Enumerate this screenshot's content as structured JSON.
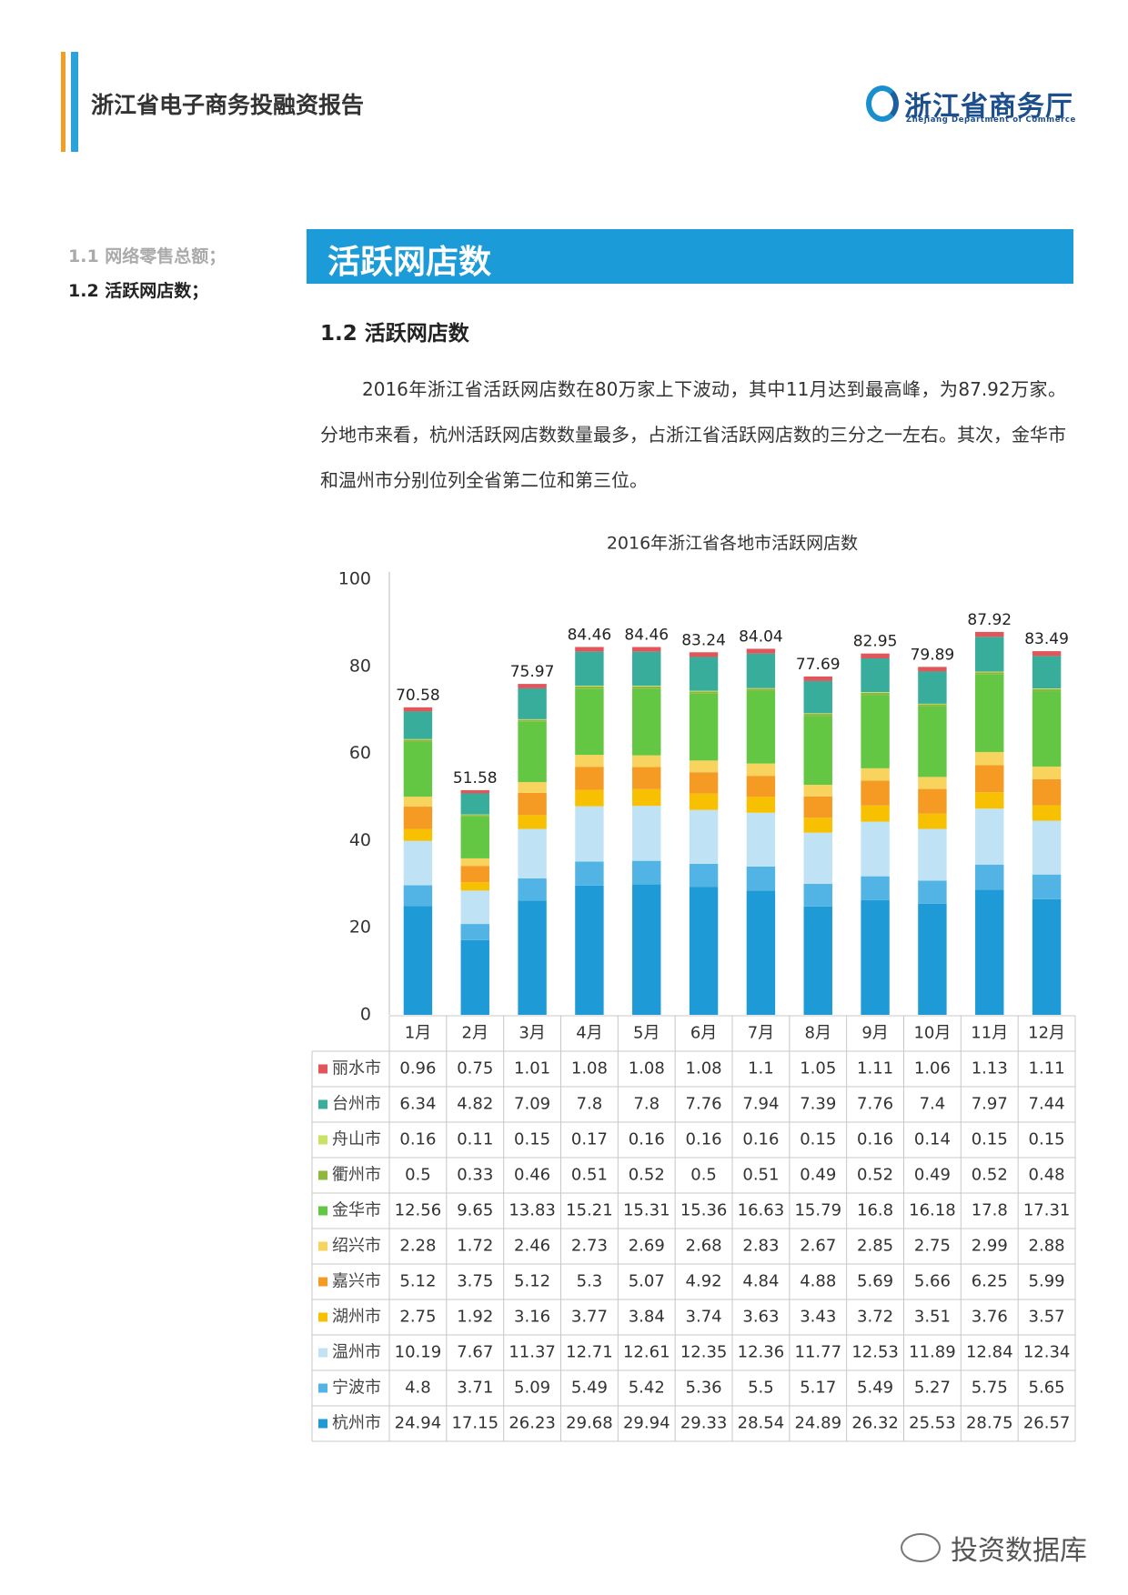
{
  "header": {
    "title": "浙江省电子商务投融资报告",
    "logo_name": "浙江省商务厅",
    "logo_subtitle": "Zhejiang Department of Commerce"
  },
  "sidebar": {
    "items": [
      "1.1 网络零售总额；",
      "1.2 活跃网店数；"
    ]
  },
  "banner": {
    "title": "活跃网店数"
  },
  "section": {
    "heading": "1.2 活跃网店数",
    "paragraph": "2016年浙江省活跃网店数在80万家上下波动，其中11月达到最高峰，为87.92万家。分地市来看，杭州活跃网店数数量最多，占浙江省活跃网店数的三分之一左右。其次，金华市和温州市分别位列全省第二位和第三位。"
  },
  "watermark": "投资数据库",
  "chart_data": {
    "type": "stacked_bar",
    "title": "2016年浙江省各地市活跃网店数",
    "categories": [
      "1月",
      "2月",
      "3月",
      "4月",
      "5月",
      "6月",
      "7月",
      "8月",
      "9月",
      "10月",
      "11月",
      "12月"
    ],
    "totals": [
      70.58,
      51.58,
      75.97,
      84.46,
      84.46,
      83.24,
      84.04,
      77.69,
      82.95,
      79.89,
      87.92,
      83.49
    ],
    "ylim": [
      0,
      100
    ],
    "yticks": [
      0,
      20,
      40,
      60,
      80,
      100
    ],
    "series": [
      {
        "name": "杭州市",
        "color": "#1e9ad6",
        "values": [
          24.94,
          17.15,
          26.23,
          29.68,
          29.94,
          29.33,
          28.54,
          24.89,
          26.32,
          25.53,
          28.75,
          26.57
        ]
      },
      {
        "name": "宁波市",
        "color": "#52b4e4",
        "values": [
          4.8,
          3.71,
          5.09,
          5.49,
          5.42,
          5.36,
          5.5,
          5.17,
          5.49,
          5.27,
          5.75,
          5.65
        ]
      },
      {
        "name": "温州市",
        "color": "#bfe3f4",
        "values": [
          10.19,
          7.67,
          11.37,
          12.71,
          12.61,
          12.35,
          12.36,
          11.77,
          12.53,
          11.89,
          12.84,
          12.34
        ]
      },
      {
        "name": "湖州市",
        "color": "#f7c000",
        "values": [
          2.75,
          1.92,
          3.16,
          3.77,
          3.84,
          3.74,
          3.63,
          3.43,
          3.72,
          3.51,
          3.76,
          3.57
        ]
      },
      {
        "name": "嘉兴市",
        "color": "#f59b23",
        "values": [
          5.12,
          3.75,
          5.12,
          5.3,
          5.07,
          4.92,
          4.84,
          4.88,
          5.69,
          5.66,
          6.25,
          5.99
        ]
      },
      {
        "name": "绍兴市",
        "color": "#f8d35e",
        "values": [
          2.28,
          1.72,
          2.46,
          2.73,
          2.69,
          2.68,
          2.83,
          2.67,
          2.85,
          2.75,
          2.99,
          2.88
        ]
      },
      {
        "name": "金华市",
        "color": "#63c744",
        "values": [
          12.56,
          9.65,
          13.83,
          15.21,
          15.31,
          15.36,
          16.63,
          15.79,
          16.8,
          16.18,
          17.8,
          17.31
        ]
      },
      {
        "name": "衢州市",
        "color": "#8db73d",
        "values": [
          0.5,
          0.33,
          0.46,
          0.51,
          0.52,
          0.5,
          0.51,
          0.49,
          0.52,
          0.49,
          0.52,
          0.48
        ]
      },
      {
        "name": "舟山市",
        "color": "#c8e266",
        "values": [
          0.16,
          0.11,
          0.15,
          0.17,
          0.16,
          0.16,
          0.16,
          0.15,
          0.16,
          0.14,
          0.15,
          0.15
        ]
      },
      {
        "name": "台州市",
        "color": "#39ad9b",
        "values": [
          6.34,
          4.82,
          7.09,
          7.8,
          7.8,
          7.76,
          7.94,
          7.39,
          7.76,
          7.4,
          7.97,
          7.44
        ]
      },
      {
        "name": "丽水市",
        "color": "#e0565b",
        "values": [
          0.96,
          0.75,
          1.01,
          1.08,
          1.08,
          1.08,
          1.1,
          1.05,
          1.11,
          1.06,
          1.13,
          1.11
        ]
      }
    ]
  }
}
